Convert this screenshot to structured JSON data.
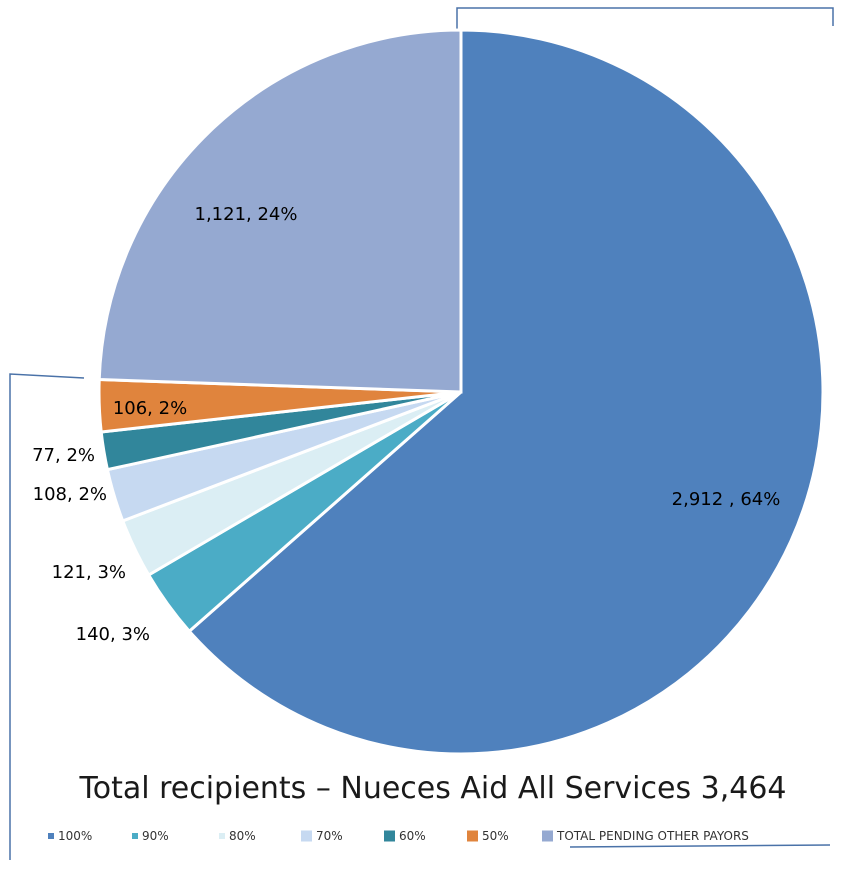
{
  "chart_data": {
    "type": "pie",
    "title": "Total recipients – Nueces Aid All Services 3,464",
    "start_angle_deg": 0,
    "direction": "clockwise",
    "slices": [
      {
        "name": "100%",
        "value": 2912,
        "label": "2,912 , 64%",
        "color": "#4f81bd"
      },
      {
        "name": "90%",
        "value": 140,
        "label": "140, 3%",
        "color": "#4bacc6"
      },
      {
        "name": "80%",
        "value": 121,
        "label": "121, 3%",
        "color": "#dbeef4"
      },
      {
        "name": "70%",
        "value": 108,
        "label": "108, 2%",
        "color": "#c6d9f1"
      },
      {
        "name": "60%",
        "value": 77,
        "label": "77, 2%",
        "color": "#31869b"
      },
      {
        "name": "50%",
        "value": 106,
        "label": "106, 2%",
        "color": "#e0843d"
      },
      {
        "name": "TOTAL PENDING OTHER PAYORS",
        "value": 1121,
        "label": "1,121, 24%",
        "color": "#95a9d1"
      }
    ],
    "legend_position": "bottom",
    "frame_color": "#4a72a8"
  }
}
